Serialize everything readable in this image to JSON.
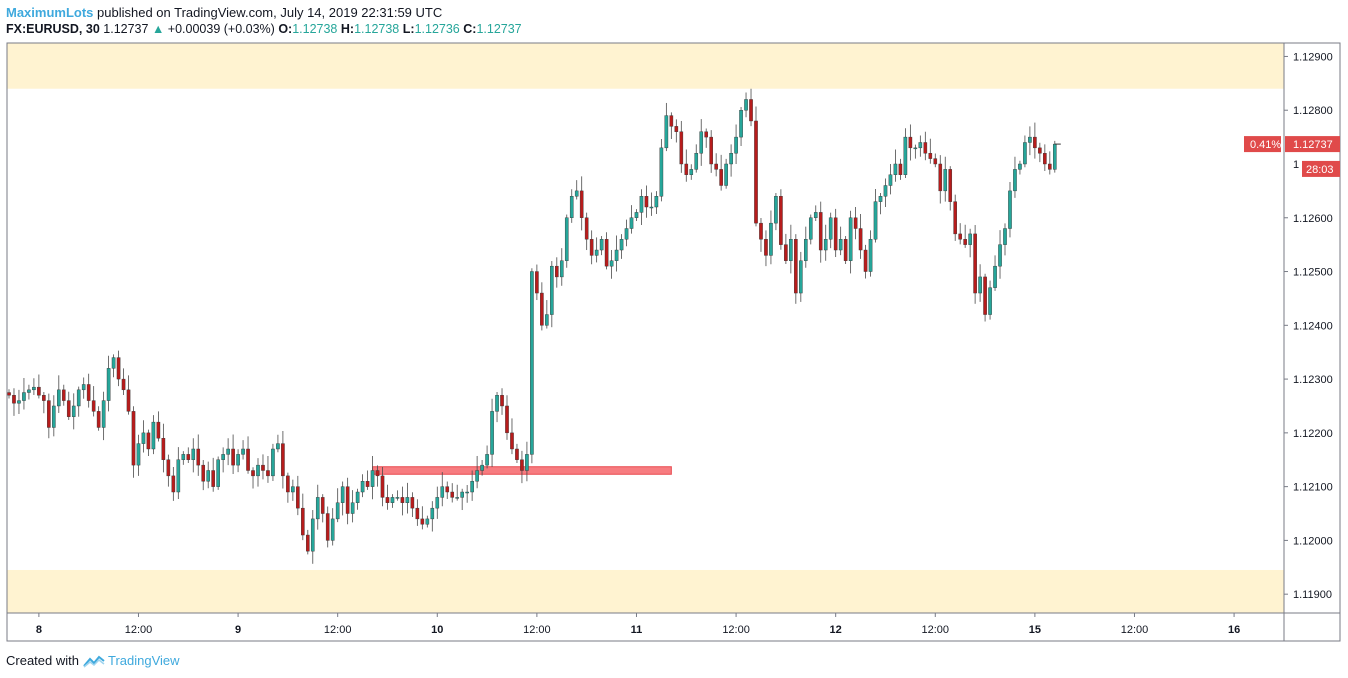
{
  "header": {
    "author": "MaximumLots",
    "published_text": "published on TradingView.com, July 14, 2019 22:31:59 UTC",
    "symbol": "FX:EURUSD, 30",
    "last": "1.12737",
    "change": "+0.00039 (+0.03%)",
    "open_label": "O:",
    "open": "1.12738",
    "high_label": "H:",
    "high": "1.12738",
    "low_label": "L:",
    "low": "1.12736",
    "close_label": "C:",
    "close": "1.12737"
  },
  "footer": {
    "created_with": "Created with",
    "brand": "TradingView",
    "brand_icon": "tradingview-logo-icon"
  },
  "colors": {
    "up": "#26a69a",
    "down": "#b71c1c",
    "zone": "#fff3d1",
    "support_box_fill": "#f77c80",
    "support_box_stroke": "#e8494f",
    "price_tag": "#e04a4a",
    "axis_text": "#131722",
    "border": "#787b86"
  },
  "chart_data": {
    "type": "candlestick",
    "symbol": "FX:EURUSD",
    "timeframe": "30",
    "ylim": [
      1.11865,
      1.12925
    ],
    "y_ticks": [
      "1.12900",
      "1.12800",
      "1.12600",
      "1.12500",
      "1.12400",
      "1.12300",
      "1.12200",
      "1.12100",
      "1.12000",
      "1.11900"
    ],
    "x_ticks": [
      {
        "label": "8",
        "bar": 6,
        "bold": true
      },
      {
        "label": "12:00",
        "bar": 26,
        "bold": false
      },
      {
        "label": "9",
        "bar": 46,
        "bold": true
      },
      {
        "label": "12:00",
        "bar": 66,
        "bold": false
      },
      {
        "label": "10",
        "bar": 86,
        "bold": true
      },
      {
        "label": "12:00",
        "bar": 106,
        "bold": false
      },
      {
        "label": "11",
        "bar": 126,
        "bold": true
      },
      {
        "label": "12:00",
        "bar": 146,
        "bold": false
      },
      {
        "label": "12",
        "bar": 166,
        "bold": true
      },
      {
        "label": "12:00",
        "bar": 186,
        "bold": false
      },
      {
        "label": "15",
        "bar": 206,
        "bold": true
      },
      {
        "label": "12:00",
        "bar": 226,
        "bold": false
      },
      {
        "label": "16",
        "bar": 246,
        "bold": true
      }
    ],
    "candle_closes": [
      1.1227,
      1.12255,
      1.1226,
      1.12275,
      1.1228,
      1.12285,
      1.1227,
      1.1226,
      1.1221,
      1.1225,
      1.1228,
      1.1226,
      1.1223,
      1.1225,
      1.1228,
      1.1229,
      1.1226,
      1.1224,
      1.1221,
      1.1226,
      1.1232,
      1.1234,
      1.123,
      1.1228,
      1.1224,
      1.1214,
      1.1218,
      1.122,
      1.1217,
      1.1222,
      1.1219,
      1.1215,
      1.1212,
      1.1209,
      1.1215,
      1.1216,
      1.1215,
      1.1217,
      1.1214,
      1.1211,
      1.1213,
      1.121,
      1.1215,
      1.1216,
      1.1217,
      1.1214,
      1.1216,
      1.1217,
      1.1213,
      1.1212,
      1.1214,
      1.1213,
      1.1212,
      1.1217,
      1.1218,
      1.1212,
      1.1209,
      1.121,
      1.1206,
      1.1201,
      1.1198,
      1.1204,
      1.1208,
      1.1205,
      1.12,
      1.1204,
      1.1207,
      1.121,
      1.1205,
      1.1207,
      1.1209,
      1.1211,
      1.121,
      1.1213,
      1.1212,
      1.1208,
      1.1207,
      1.1208,
      1.1208,
      1.1207,
      1.1208,
      1.1206,
      1.1204,
      1.1203,
      1.1204,
      1.1206,
      1.1208,
      1.121,
      1.1209,
      1.1208,
      1.1208,
      1.1209,
      1.1209,
      1.1211,
      1.1213,
      1.1214,
      1.1216,
      1.1224,
      1.1227,
      1.1225,
      1.122,
      1.1217,
      1.1215,
      1.1213,
      1.1216,
      1.125,
      1.1246,
      1.124,
      1.1242,
      1.1251,
      1.1249,
      1.1252,
      1.126,
      1.1264,
      1.1265,
      1.126,
      1.1256,
      1.1253,
      1.1254,
      1.1256,
      1.1251,
      1.1252,
      1.1254,
      1.1256,
      1.1258,
      1.126,
      1.1261,
      1.1264,
      1.1262,
      1.1262,
      1.1264,
      1.1273,
      1.1279,
      1.1277,
      1.1276,
      1.127,
      1.1268,
      1.1269,
      1.1272,
      1.1276,
      1.1275,
      1.127,
      1.1269,
      1.1266,
      1.127,
      1.1272,
      1.1275,
      1.128,
      1.1282,
      1.1278,
      1.1259,
      1.1256,
      1.1253,
      1.1259,
      1.1264,
      1.1255,
      1.1252,
      1.1256,
      1.1246,
      1.1252,
      1.1256,
      1.126,
      1.1261,
      1.1254,
      1.1256,
      1.126,
      1.1254,
      1.1256,
      1.1252,
      1.126,
      1.1258,
      1.1254,
      1.125,
      1.1256,
      1.1263,
      1.1264,
      1.1266,
      1.1268,
      1.127,
      1.1268,
      1.1275,
      1.1273,
      1.1273,
      1.1274,
      1.1272,
      1.1271,
      1.127,
      1.1265,
      1.1269,
      1.1263,
      1.1257,
      1.1256,
      1.1255,
      1.1257,
      1.1246,
      1.1249,
      1.1242,
      1.1247,
      1.1251,
      1.1255,
      1.1258,
      1.1265,
      1.1269,
      1.127,
      1.1274,
      1.1275,
      1.1273,
      1.1272,
      1.127,
      1.1269,
      1.12737
    ],
    "zones": [
      {
        "label": "upper-zone",
        "from": 1.1284,
        "to": 1.12925
      },
      {
        "label": "lower-zone",
        "from": 1.11865,
        "to": 1.11945
      }
    ],
    "support_box": {
      "price_top": 1.12137,
      "price_bottom": 1.12123,
      "bar_start": 73,
      "bar_end": 133
    },
    "price_tags": [
      {
        "text": "1.12737",
        "pct": "0.41%",
        "price": 1.12737
      },
      {
        "text": "28:03",
        "price": 1.12702
      }
    ],
    "partial_tick": {
      "text": "1",
      "price": 1.127
    }
  }
}
